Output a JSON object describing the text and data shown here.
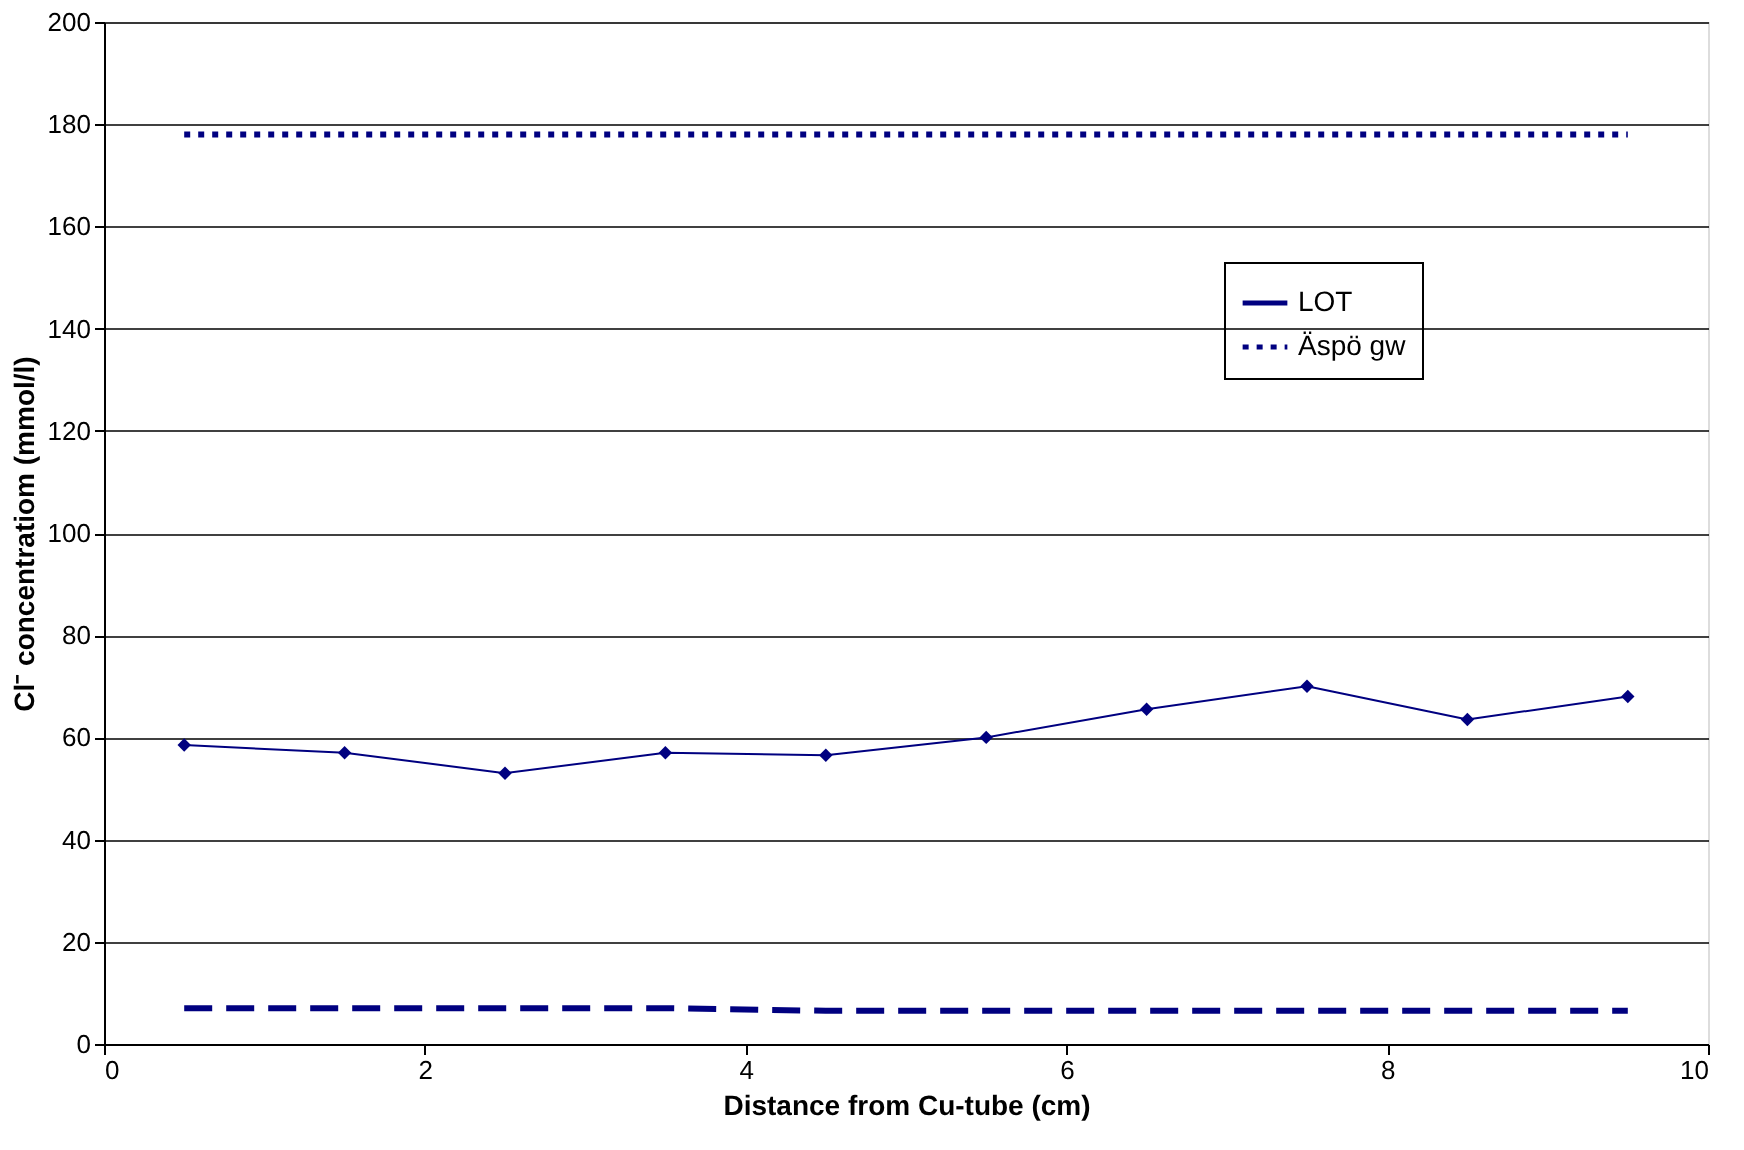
{
  "chart_data": {
    "type": "line",
    "xlabel": "Distance from Cu-tube (cm)",
    "ylabel": "Cl⁻ concentratiom (mmol/l)",
    "x": [
      0.5,
      1.5,
      2.5,
      3.5,
      4.5,
      5.5,
      6.5,
      7.5,
      8.5,
      9.5
    ],
    "series": [
      {
        "name": "LOT",
        "color": "#000080",
        "marker": "diamond",
        "line_style": "solid",
        "values": [
          58.5,
          57,
          53,
          57,
          56.5,
          60,
          65.5,
          70,
          63.5,
          68
        ]
      },
      {
        "color": "#000080",
        "marker": "none",
        "line_style": "dashed",
        "values": [
          7,
          7,
          7,
          7,
          6.5,
          6.5,
          6.5,
          6.5,
          6.5,
          6.5
        ]
      },
      {
        "name": "Äspö gw",
        "color": "#000080",
        "marker": "none",
        "line_style": "dotted",
        "values": [
          178,
          178,
          178,
          178,
          178,
          178,
          178,
          178,
          178,
          178
        ]
      }
    ],
    "xlim": [
      0,
      10
    ],
    "xticks": [
      0,
      2,
      4,
      6,
      8,
      10
    ],
    "ylim": [
      0,
      200
    ],
    "yticks": [
      0,
      20,
      40,
      60,
      80,
      100,
      120,
      140,
      160,
      180,
      200
    ],
    "grid": "y",
    "legend": "top right"
  }
}
